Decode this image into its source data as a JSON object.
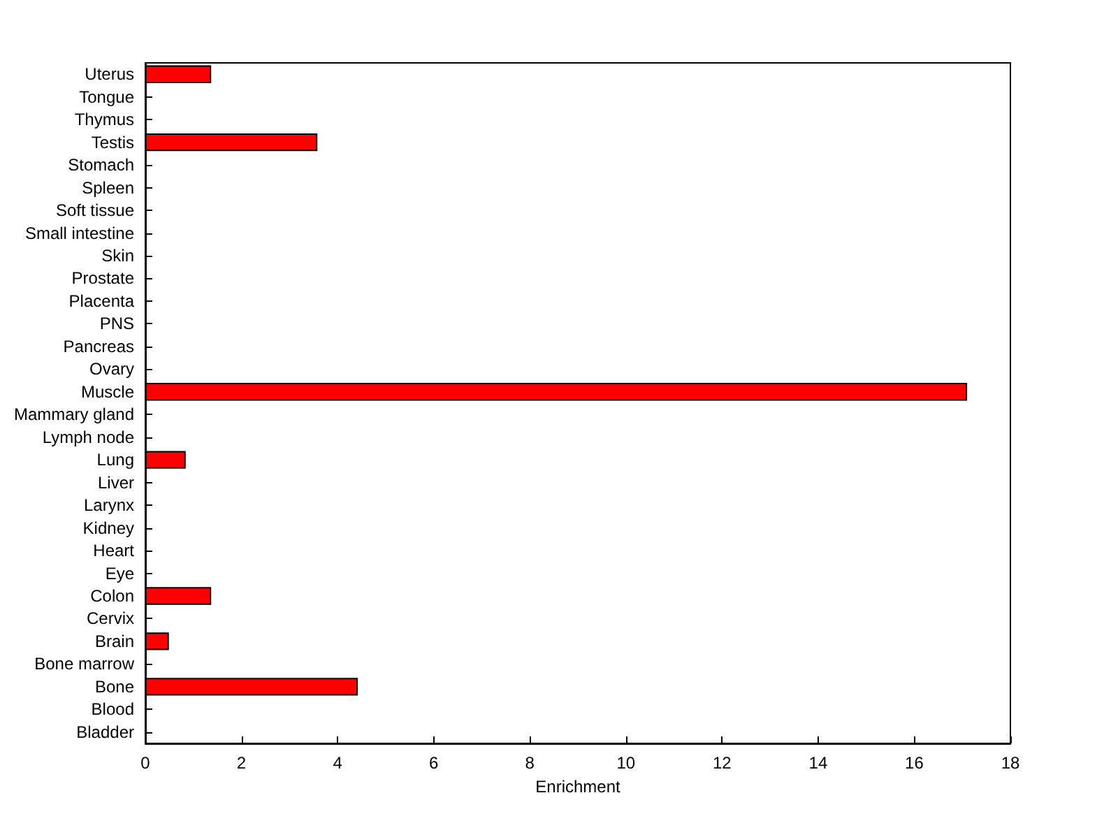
{
  "chart_data": {
    "type": "bar",
    "orientation": "horizontal",
    "xlabel": "Enrichment",
    "categories": [
      "Uterus",
      "Tongue",
      "Thymus",
      "Testis",
      "Stomach",
      "Spleen",
      "Soft tissue",
      "Small intestine",
      "Skin",
      "Prostate",
      "Placenta",
      "PNS",
      "Pancreas",
      "Ovary",
      "Muscle",
      "Mammary gland",
      "Lymph node",
      "Lung",
      "Liver",
      "Larynx",
      "Kidney",
      "Heart",
      "Eye",
      "Colon",
      "Cervix",
      "Brain",
      "Bone marrow",
      "Bone",
      "Blood",
      "Bladder"
    ],
    "values": [
      1.37,
      0,
      0,
      3.58,
      0,
      0,
      0,
      0,
      0,
      0,
      0,
      0,
      0,
      0,
      17.1,
      0,
      0,
      0.84,
      0,
      0,
      0,
      0,
      0,
      1.37,
      0,
      0.49,
      0,
      4.42,
      0,
      0
    ],
    "color": "#ff0000",
    "xlim": [
      0,
      18
    ],
    "xticks": [
      0,
      2,
      4,
      6,
      8,
      10,
      12,
      14,
      16,
      18
    ],
    "grid": false
  }
}
